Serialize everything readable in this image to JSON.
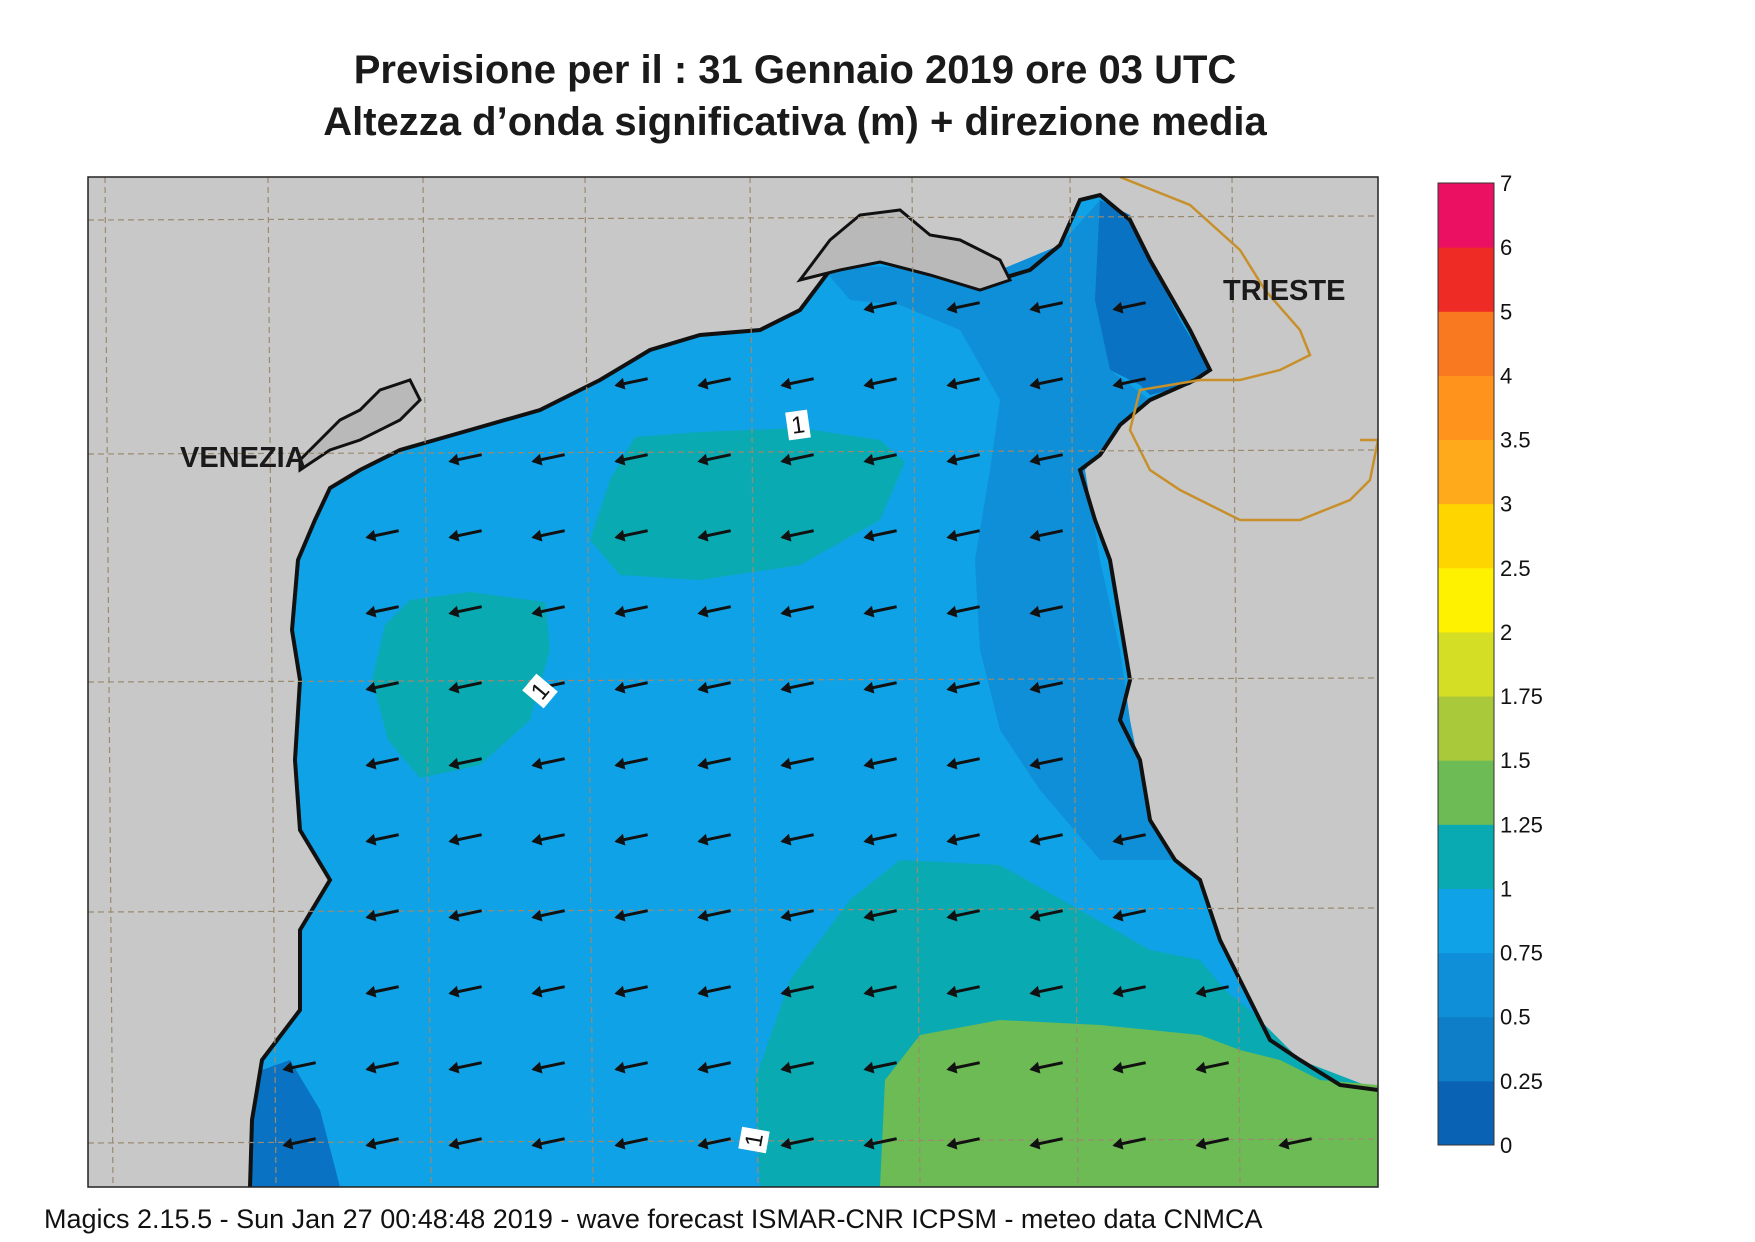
{
  "title": {
    "line1": "Previsione per il  :  31  Gennaio  2019   ore 03 UTC",
    "line2": "Altezza d’onda significativa (m) + direzione media"
  },
  "footer": "Magics 2.15.5 - Sun Jan 27 00:48:48 2019 - wave forecast  ISMAR-CNR  ICPSM - meteo data   CNMCA",
  "cities": [
    {
      "name": "VENEZIA"
    },
    {
      "name": "TRIESTE"
    }
  ],
  "contour_labels": [
    "1",
    "1",
    "1"
  ],
  "colorbar": {
    "levels": [
      "0",
      "0.25",
      "0.5",
      "0.75",
      "1",
      "1.25",
      "1.5",
      "1.75",
      "2",
      "2.5",
      "3",
      "3.5",
      "4",
      "5",
      "6",
      "7"
    ],
    "colors": [
      "#0a62b4",
      "#0f7ec8",
      "#0f8fd8",
      "#10a2e6",
      "#0aaab2",
      "#6cbb55",
      "#a9c83a",
      "#d4de24",
      "#fff200",
      "#ffd500",
      "#ffaa1b",
      "#ff931c",
      "#f8791f",
      "#ee2b24",
      "#ec1063"
    ]
  },
  "wave_direction": "west",
  "colors": {
    "land": "#c8c8c8",
    "sea_low": "#0f8fd8",
    "sea_mid": "#10a2e6",
    "sea_high": "#0aaab2",
    "sea_higher": "#6cbb55",
    "border": "#c8902a"
  }
}
